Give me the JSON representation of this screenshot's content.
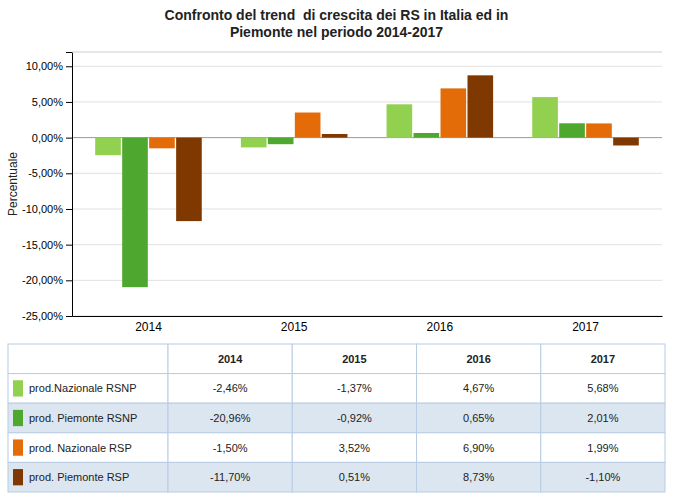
{
  "chart_data": {
    "type": "bar",
    "title": "Confronto del trend  di crescita dei RS in Italia ed in\nPiemonte nel periodo 2014-2017",
    "ylabel": "Percentuale",
    "categories": [
      "2014",
      "2015",
      "2016",
      "2017"
    ],
    "series": [
      {
        "name": "prod.Nazionale RSNP",
        "color": "#92d050",
        "values": [
          -2.46,
          -1.37,
          4.67,
          5.68
        ],
        "value_labels": [
          "-2,46%",
          "-1,37%",
          "4,67%",
          "5,68%"
        ]
      },
      {
        "name": "prod. Piemonte RSNP",
        "color": "#4ea72e",
        "values": [
          -20.96,
          -0.92,
          0.65,
          2.01
        ],
        "value_labels": [
          "-20,96%",
          "-0,92%",
          "0,65%",
          "2,01%"
        ]
      },
      {
        "name": "prod. Nazionale RSP",
        "color": "#e36c09",
        "values": [
          -1.5,
          3.52,
          6.9,
          1.99
        ],
        "value_labels": [
          "-1,50%",
          "3,52%",
          "6,90%",
          "1,99%"
        ]
      },
      {
        "name": "prod. Piemonte RSP",
        "color": "#7f3900",
        "values": [
          -11.7,
          0.51,
          8.73,
          -1.1
        ],
        "value_labels": [
          "-11,70%",
          "0,51%",
          "8,73%",
          "-1,10%"
        ]
      }
    ],
    "ylim": [
      -25.0,
      12.0
    ],
    "yticks": [
      {
        "value": -25.0,
        "label": "-25,00%"
      },
      {
        "value": -20.0,
        "label": "-20,00%"
      },
      {
        "value": -15.0,
        "label": "-15,00%"
      },
      {
        "value": -10.0,
        "label": "-10,00%"
      },
      {
        "value": -5.0,
        "label": "-5,00%"
      },
      {
        "value": 0.0,
        "label": "0,00%"
      },
      {
        "value": 5.0,
        "label": "5,00%"
      },
      {
        "value": 10.0,
        "label": "10,00%"
      }
    ],
    "grid": true
  }
}
